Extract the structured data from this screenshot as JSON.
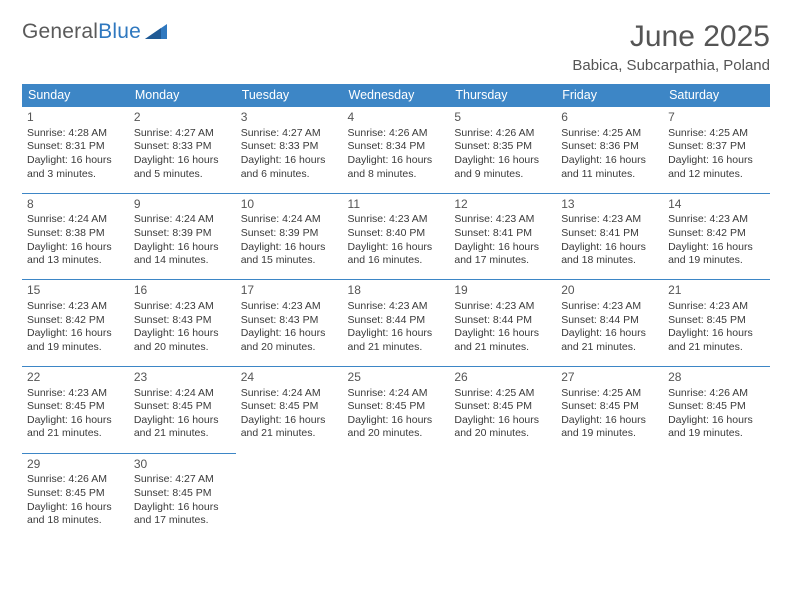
{
  "brand": {
    "word1": "General",
    "word2": "Blue"
  },
  "title": "June 2025",
  "location": "Babica, Subcarpathia, Poland",
  "colors": {
    "header_bg": "#3d86c6",
    "header_text": "#ffffff",
    "rule": "#3d86c6",
    "text": "#3a3a3a",
    "title_text": "#555555"
  },
  "weekdays": [
    "Sunday",
    "Monday",
    "Tuesday",
    "Wednesday",
    "Thursday",
    "Friday",
    "Saturday"
  ],
  "weeks": [
    [
      {
        "day": "1",
        "sunrise": "Sunrise: 4:28 AM",
        "sunset": "Sunset: 8:31 PM",
        "daylight": "Daylight: 16 hours and 3 minutes."
      },
      {
        "day": "2",
        "sunrise": "Sunrise: 4:27 AM",
        "sunset": "Sunset: 8:33 PM",
        "daylight": "Daylight: 16 hours and 5 minutes."
      },
      {
        "day": "3",
        "sunrise": "Sunrise: 4:27 AM",
        "sunset": "Sunset: 8:33 PM",
        "daylight": "Daylight: 16 hours and 6 minutes."
      },
      {
        "day": "4",
        "sunrise": "Sunrise: 4:26 AM",
        "sunset": "Sunset: 8:34 PM",
        "daylight": "Daylight: 16 hours and 8 minutes."
      },
      {
        "day": "5",
        "sunrise": "Sunrise: 4:26 AM",
        "sunset": "Sunset: 8:35 PM",
        "daylight": "Daylight: 16 hours and 9 minutes."
      },
      {
        "day": "6",
        "sunrise": "Sunrise: 4:25 AM",
        "sunset": "Sunset: 8:36 PM",
        "daylight": "Daylight: 16 hours and 11 minutes."
      },
      {
        "day": "7",
        "sunrise": "Sunrise: 4:25 AM",
        "sunset": "Sunset: 8:37 PM",
        "daylight": "Daylight: 16 hours and 12 minutes."
      }
    ],
    [
      {
        "day": "8",
        "sunrise": "Sunrise: 4:24 AM",
        "sunset": "Sunset: 8:38 PM",
        "daylight": "Daylight: 16 hours and 13 minutes."
      },
      {
        "day": "9",
        "sunrise": "Sunrise: 4:24 AM",
        "sunset": "Sunset: 8:39 PM",
        "daylight": "Daylight: 16 hours and 14 minutes."
      },
      {
        "day": "10",
        "sunrise": "Sunrise: 4:24 AM",
        "sunset": "Sunset: 8:39 PM",
        "daylight": "Daylight: 16 hours and 15 minutes."
      },
      {
        "day": "11",
        "sunrise": "Sunrise: 4:23 AM",
        "sunset": "Sunset: 8:40 PM",
        "daylight": "Daylight: 16 hours and 16 minutes."
      },
      {
        "day": "12",
        "sunrise": "Sunrise: 4:23 AM",
        "sunset": "Sunset: 8:41 PM",
        "daylight": "Daylight: 16 hours and 17 minutes."
      },
      {
        "day": "13",
        "sunrise": "Sunrise: 4:23 AM",
        "sunset": "Sunset: 8:41 PM",
        "daylight": "Daylight: 16 hours and 18 minutes."
      },
      {
        "day": "14",
        "sunrise": "Sunrise: 4:23 AM",
        "sunset": "Sunset: 8:42 PM",
        "daylight": "Daylight: 16 hours and 19 minutes."
      }
    ],
    [
      {
        "day": "15",
        "sunrise": "Sunrise: 4:23 AM",
        "sunset": "Sunset: 8:42 PM",
        "daylight": "Daylight: 16 hours and 19 minutes."
      },
      {
        "day": "16",
        "sunrise": "Sunrise: 4:23 AM",
        "sunset": "Sunset: 8:43 PM",
        "daylight": "Daylight: 16 hours and 20 minutes."
      },
      {
        "day": "17",
        "sunrise": "Sunrise: 4:23 AM",
        "sunset": "Sunset: 8:43 PM",
        "daylight": "Daylight: 16 hours and 20 minutes."
      },
      {
        "day": "18",
        "sunrise": "Sunrise: 4:23 AM",
        "sunset": "Sunset: 8:44 PM",
        "daylight": "Daylight: 16 hours and 21 minutes."
      },
      {
        "day": "19",
        "sunrise": "Sunrise: 4:23 AM",
        "sunset": "Sunset: 8:44 PM",
        "daylight": "Daylight: 16 hours and 21 minutes."
      },
      {
        "day": "20",
        "sunrise": "Sunrise: 4:23 AM",
        "sunset": "Sunset: 8:44 PM",
        "daylight": "Daylight: 16 hours and 21 minutes."
      },
      {
        "day": "21",
        "sunrise": "Sunrise: 4:23 AM",
        "sunset": "Sunset: 8:45 PM",
        "daylight": "Daylight: 16 hours and 21 minutes."
      }
    ],
    [
      {
        "day": "22",
        "sunrise": "Sunrise: 4:23 AM",
        "sunset": "Sunset: 8:45 PM",
        "daylight": "Daylight: 16 hours and 21 minutes."
      },
      {
        "day": "23",
        "sunrise": "Sunrise: 4:24 AM",
        "sunset": "Sunset: 8:45 PM",
        "daylight": "Daylight: 16 hours and 21 minutes."
      },
      {
        "day": "24",
        "sunrise": "Sunrise: 4:24 AM",
        "sunset": "Sunset: 8:45 PM",
        "daylight": "Daylight: 16 hours and 21 minutes."
      },
      {
        "day": "25",
        "sunrise": "Sunrise: 4:24 AM",
        "sunset": "Sunset: 8:45 PM",
        "daylight": "Daylight: 16 hours and 20 minutes."
      },
      {
        "day": "26",
        "sunrise": "Sunrise: 4:25 AM",
        "sunset": "Sunset: 8:45 PM",
        "daylight": "Daylight: 16 hours and 20 minutes."
      },
      {
        "day": "27",
        "sunrise": "Sunrise: 4:25 AM",
        "sunset": "Sunset: 8:45 PM",
        "daylight": "Daylight: 16 hours and 19 minutes."
      },
      {
        "day": "28",
        "sunrise": "Sunrise: 4:26 AM",
        "sunset": "Sunset: 8:45 PM",
        "daylight": "Daylight: 16 hours and 19 minutes."
      }
    ],
    [
      {
        "day": "29",
        "sunrise": "Sunrise: 4:26 AM",
        "sunset": "Sunset: 8:45 PM",
        "daylight": "Daylight: 16 hours and 18 minutes."
      },
      {
        "day": "30",
        "sunrise": "Sunrise: 4:27 AM",
        "sunset": "Sunset: 8:45 PM",
        "daylight": "Daylight: 16 hours and 17 minutes."
      },
      null,
      null,
      null,
      null,
      null
    ]
  ]
}
